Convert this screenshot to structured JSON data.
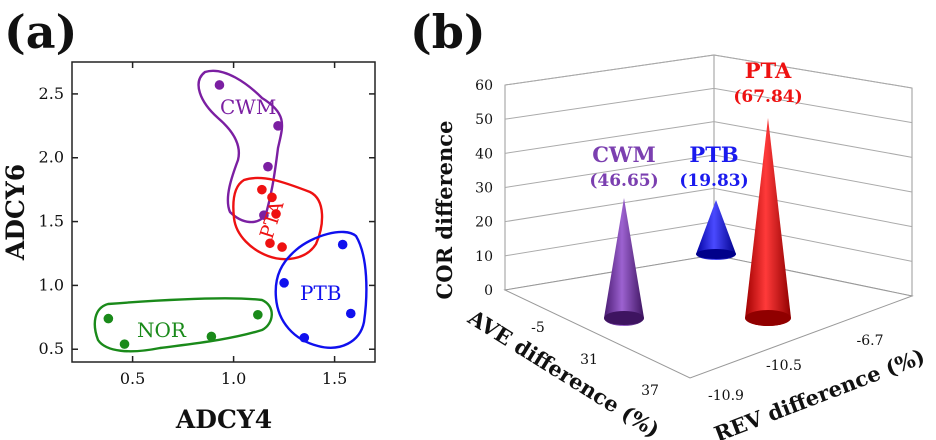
{
  "panels": [
    {
      "label": "(a)",
      "chart_index": 0
    },
    {
      "label": "(b)",
      "chart_index": 1
    }
  ],
  "chart_data": [
    {
      "type": "scatter",
      "title": "",
      "xlabel": "ADCY4",
      "ylabel": "ADCY6",
      "xlim": [
        0.2,
        1.7
      ],
      "ylim": [
        0.4,
        2.75
      ],
      "xticks": [
        "0.5",
        "1.0",
        "1.5"
      ],
      "xtick_values": [
        0.5,
        1.0,
        1.5
      ],
      "yticks": [
        "0.5",
        "1.0",
        "1.5",
        "2.0",
        "2.5"
      ],
      "ytick_values": [
        0.5,
        1.0,
        1.5,
        2.0,
        2.5
      ],
      "grid": false,
      "series": [
        {
          "name": "CWM",
          "color": "#7b1fa2",
          "points": [
            [
              0.93,
              2.57
            ],
            [
              1.22,
              2.25
            ],
            [
              1.17,
              1.93
            ],
            [
              1.15,
              1.55
            ]
          ]
        },
        {
          "name": "PTA",
          "color": "#ee1111",
          "points": [
            [
              1.14,
              1.75
            ],
            [
              1.19,
              1.69
            ],
            [
              1.21,
              1.56
            ],
            [
              1.18,
              1.33
            ],
            [
              1.24,
              1.3
            ]
          ]
        },
        {
          "name": "PTB",
          "color": "#1010ee",
          "points": [
            [
              1.54,
              1.32
            ],
            [
              1.25,
              1.02
            ],
            [
              1.58,
              0.78
            ],
            [
              1.35,
              0.59
            ]
          ]
        },
        {
          "name": "NOR",
          "color": "#1a8a1a",
          "points": [
            [
              0.38,
              0.74
            ],
            [
              0.46,
              0.54
            ],
            [
              0.89,
              0.6
            ],
            [
              1.12,
              0.77
            ]
          ]
        }
      ]
    },
    {
      "type": "bar",
      "variant": "3d-cone",
      "title": "",
      "zlabel": "COR difference",
      "xlabel": "AVE difference (%)",
      "ylabel": "REV difference (%)",
      "zlim": [
        0,
        60
      ],
      "zticks": [
        "0",
        "10",
        "20",
        "30",
        "40",
        "50",
        "60"
      ],
      "xticks": [
        "-5",
        "31",
        "37"
      ],
      "yticks": [
        "-10.9",
        "-10.5",
        "-6.7"
      ],
      "grid": true,
      "series": [
        {
          "name": "CWM",
          "value_label": "(46.65)",
          "value": 46.65,
          "color": "#7b3fb0"
        },
        {
          "name": "PTB",
          "value_label": "(19.83)",
          "value": 19.83,
          "color": "#1a1aee"
        },
        {
          "name": "PTA",
          "value_label": "(67.84)",
          "value": 67.84,
          "color": "#ee1111"
        }
      ]
    }
  ]
}
